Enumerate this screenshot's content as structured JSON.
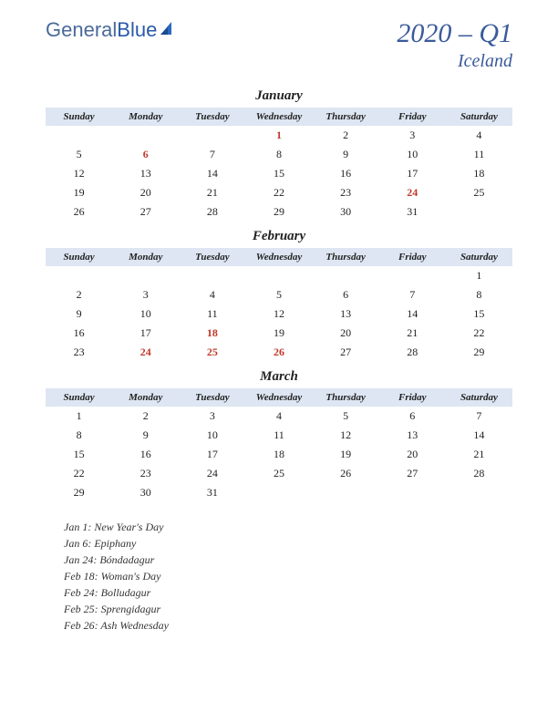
{
  "logo": {
    "part1": "General",
    "part2": "Blue"
  },
  "title": {
    "quarter": "2020 – Q1",
    "country": "Iceland"
  },
  "dayHeaders": [
    "Sunday",
    "Monday",
    "Tuesday",
    "Wednesday",
    "Thursday",
    "Friday",
    "Saturday"
  ],
  "headerBg": "#dde6f2",
  "holidayColor": "#c0392b",
  "textColor": "#222222",
  "titleColor": "#3a5a9a",
  "months": [
    {
      "name": "January",
      "weeks": [
        [
          null,
          null,
          null,
          {
            "d": 1,
            "h": true
          },
          {
            "d": 2
          },
          {
            "d": 3
          },
          {
            "d": 4
          }
        ],
        [
          {
            "d": 5
          },
          {
            "d": 6,
            "h": true
          },
          {
            "d": 7
          },
          {
            "d": 8
          },
          {
            "d": 9
          },
          {
            "d": 10
          },
          {
            "d": 11
          }
        ],
        [
          {
            "d": 12
          },
          {
            "d": 13
          },
          {
            "d": 14
          },
          {
            "d": 15
          },
          {
            "d": 16
          },
          {
            "d": 17
          },
          {
            "d": 18
          }
        ],
        [
          {
            "d": 19
          },
          {
            "d": 20
          },
          {
            "d": 21
          },
          {
            "d": 22
          },
          {
            "d": 23
          },
          {
            "d": 24,
            "h": true
          },
          {
            "d": 25
          }
        ],
        [
          {
            "d": 26
          },
          {
            "d": 27
          },
          {
            "d": 28
          },
          {
            "d": 29
          },
          {
            "d": 30
          },
          {
            "d": 31
          },
          null
        ]
      ]
    },
    {
      "name": "February",
      "weeks": [
        [
          null,
          null,
          null,
          null,
          null,
          null,
          {
            "d": 1
          }
        ],
        [
          {
            "d": 2
          },
          {
            "d": 3
          },
          {
            "d": 4
          },
          {
            "d": 5
          },
          {
            "d": 6
          },
          {
            "d": 7
          },
          {
            "d": 8
          }
        ],
        [
          {
            "d": 9
          },
          {
            "d": 10
          },
          {
            "d": 11
          },
          {
            "d": 12
          },
          {
            "d": 13
          },
          {
            "d": 14
          },
          {
            "d": 15
          }
        ],
        [
          {
            "d": 16
          },
          {
            "d": 17
          },
          {
            "d": 18,
            "h": true
          },
          {
            "d": 19
          },
          {
            "d": 20
          },
          {
            "d": 21
          },
          {
            "d": 22
          }
        ],
        [
          {
            "d": 23
          },
          {
            "d": 24,
            "h": true
          },
          {
            "d": 25,
            "h": true
          },
          {
            "d": 26,
            "h": true
          },
          {
            "d": 27
          },
          {
            "d": 28
          },
          {
            "d": 29
          }
        ]
      ]
    },
    {
      "name": "March",
      "weeks": [
        [
          {
            "d": 1
          },
          {
            "d": 2
          },
          {
            "d": 3
          },
          {
            "d": 4
          },
          {
            "d": 5
          },
          {
            "d": 6
          },
          {
            "d": 7
          }
        ],
        [
          {
            "d": 8
          },
          {
            "d": 9
          },
          {
            "d": 10
          },
          {
            "d": 11
          },
          {
            "d": 12
          },
          {
            "d": 13
          },
          {
            "d": 14
          }
        ],
        [
          {
            "d": 15
          },
          {
            "d": 16
          },
          {
            "d": 17
          },
          {
            "d": 18
          },
          {
            "d": 19
          },
          {
            "d": 20
          },
          {
            "d": 21
          }
        ],
        [
          {
            "d": 22
          },
          {
            "d": 23
          },
          {
            "d": 24
          },
          {
            "d": 25
          },
          {
            "d": 26
          },
          {
            "d": 27
          },
          {
            "d": 28
          }
        ],
        [
          {
            "d": 29
          },
          {
            "d": 30
          },
          {
            "d": 31
          },
          null,
          null,
          null,
          null
        ]
      ]
    }
  ],
  "holidayList": [
    "Jan 1: New Year's Day",
    "Jan 6: Epiphany",
    "Jan 24: Bóndadagur",
    "Feb 18: Woman's Day",
    "Feb 24: Bolludagur",
    "Feb 25: Sprengidagur",
    "Feb 26: Ash Wednesday"
  ]
}
